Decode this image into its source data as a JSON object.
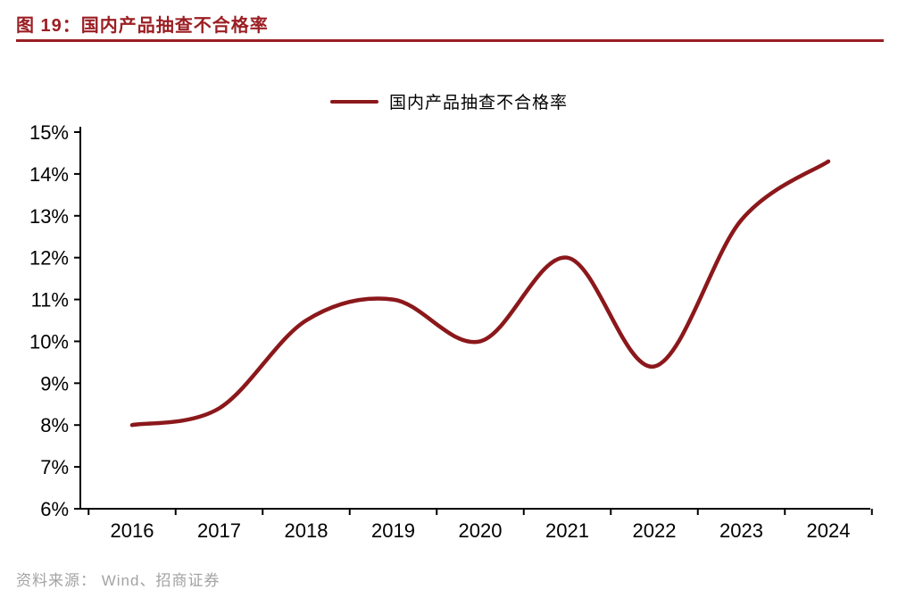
{
  "page": {
    "title": "图 19：国内产品抽查不合格率",
    "source": "资料来源： Wind、招商证券"
  },
  "colors": {
    "accent": "#9b1e23",
    "line": "#8b181b",
    "axis": "#000000",
    "muted": "#a3a3a3",
    "background": "#ffffff"
  },
  "chart_data": {
    "type": "line",
    "title": "图 19：国内产品抽查不合格率",
    "legend": [
      "国内产品抽查不合格率"
    ],
    "legend_position": "top-center",
    "x": [
      2016,
      2017,
      2018,
      2019,
      2020,
      2021,
      2022,
      2023,
      2024
    ],
    "series": [
      {
        "name": "国内产品抽查不合格率",
        "values": [
          8.0,
          8.4,
          10.5,
          11.0,
          10.0,
          12.0,
          9.4,
          12.9,
          14.3
        ]
      }
    ],
    "ylim": [
      6,
      15
    ],
    "y_tick_step": 1,
    "y_ticks": [
      "6%",
      "7%",
      "8%",
      "9%",
      "10%",
      "11%",
      "12%",
      "13%",
      "14%",
      "15%"
    ],
    "grid": false,
    "smooth": true
  }
}
